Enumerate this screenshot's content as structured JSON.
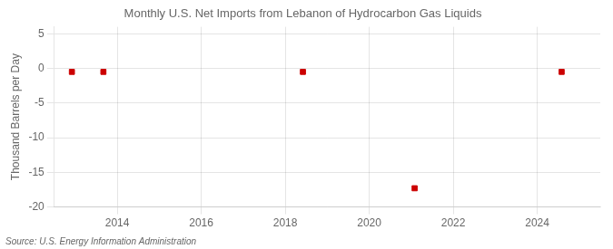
{
  "chart_data": {
    "type": "scatter",
    "title": "Monthly U.S. Net Imports from Lebanon of Hydrocarbon Gas Liquids",
    "ylabel": "Thousand Barrels per Day",
    "annotation": "Source: U.S. Energy Information Administration",
    "x": [
      2012.92,
      2013.67,
      2018.42,
      2021.08,
      2024.58
    ],
    "values": [
      -0.5,
      -0.5,
      -0.5,
      -17.3,
      -0.5
    ],
    "color": "#cc0000",
    "marker": "square",
    "xlim": [
      2012.5,
      2025.5
    ],
    "xticks": [
      2014,
      2016,
      2018,
      2020,
      2022,
      2024
    ],
    "ylim": [
      -20,
      6
    ],
    "yticks": [
      -20,
      -15,
      -10,
      -5,
      0,
      5
    ],
    "grid": true
  }
}
